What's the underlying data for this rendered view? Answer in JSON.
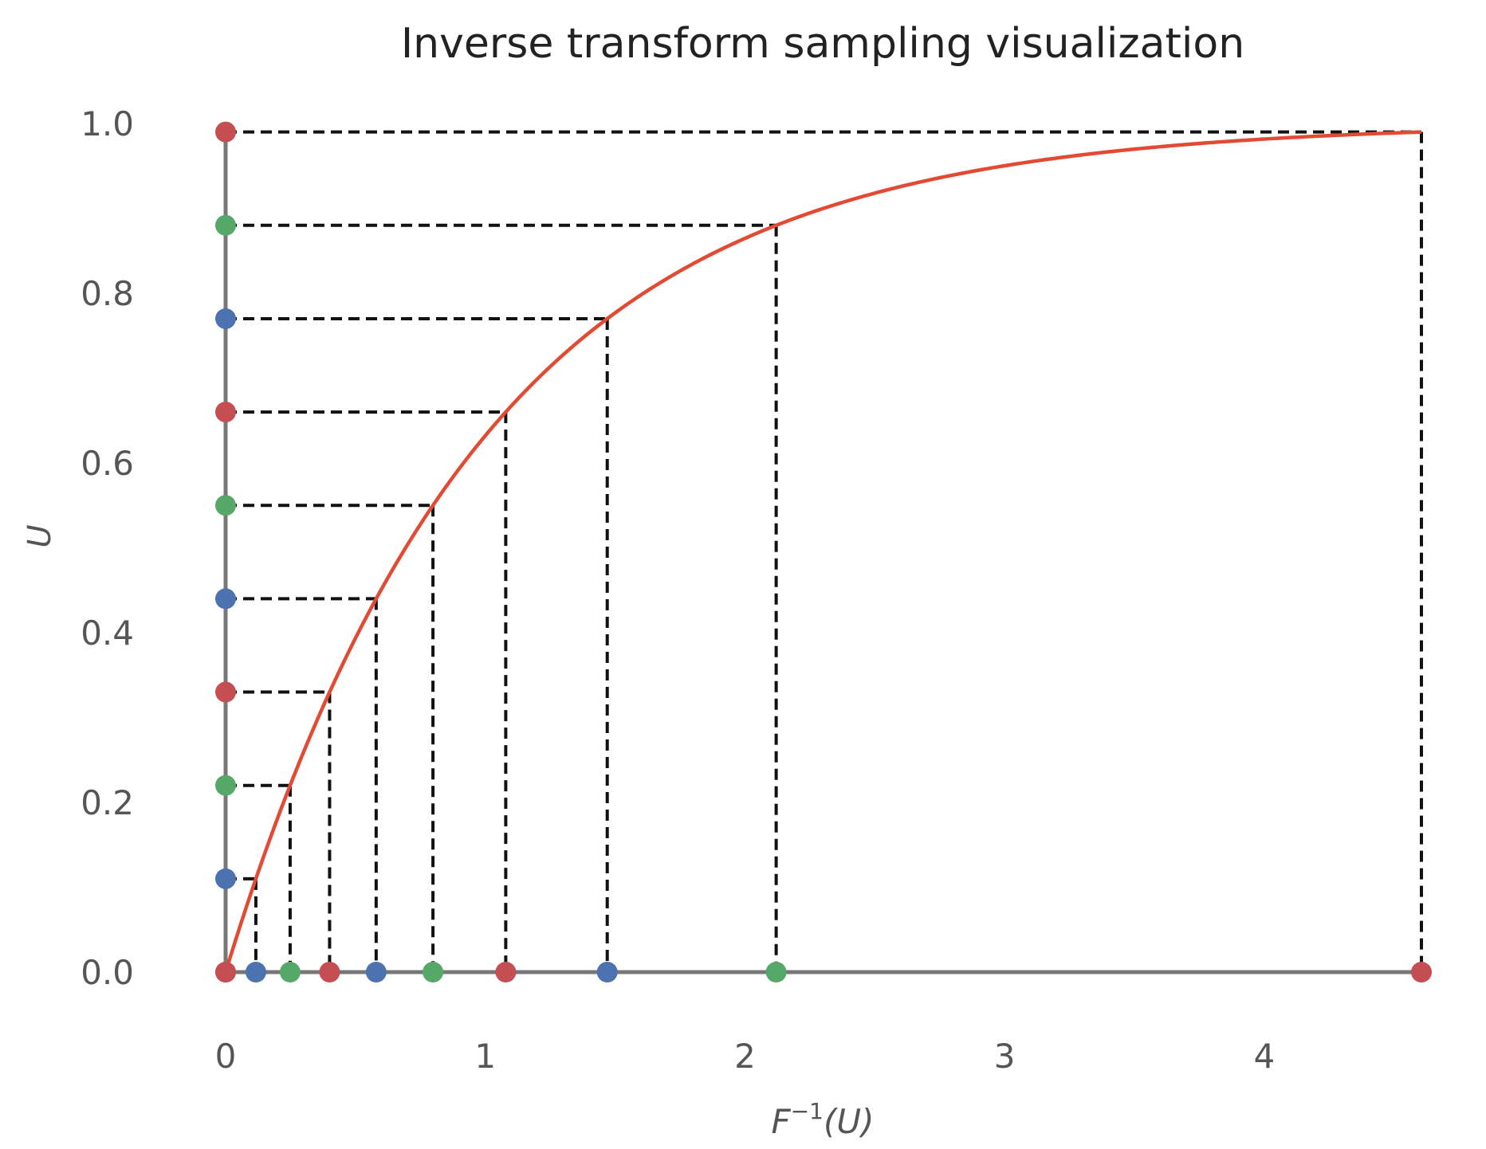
{
  "chart_data": {
    "type": "line",
    "title": "Inverse transform sampling visualization",
    "xlabel_base": "F",
    "xlabel_sup": "−1",
    "xlabel_arg": "(U)",
    "ylabel": "U",
    "xlim": [
      0,
      4.6052
    ],
    "ylim": [
      -0.12,
      1.0
    ],
    "x_ticks": [
      0,
      1,
      2,
      3,
      4
    ],
    "x_tick_labels": [
      "0",
      "1",
      "2",
      "3",
      "4"
    ],
    "y_ticks": [
      0.0,
      0.2,
      0.4,
      0.6,
      0.8,
      1.0
    ],
    "y_tick_labels": [
      "0.0",
      "0.2",
      "0.4",
      "0.6",
      "0.8",
      "1.0"
    ],
    "grid": false,
    "legend": false,
    "series": [
      {
        "kind": "cdf-curve",
        "function": "1 - exp(-x)",
        "x_range": [
          0,
          4.6052
        ],
        "color": "#e24a33"
      }
    ],
    "samples_u": [
      0.0,
      0.11,
      0.22,
      0.33,
      0.44,
      0.55,
      0.66,
      0.77,
      0.88,
      0.99
    ],
    "samples_x": [
      0.0,
      0.1165,
      0.2485,
      0.4005,
      0.5798,
      0.7985,
      1.0788,
      1.4697,
      2.1203,
      4.6052
    ],
    "sample_colors": [
      "#c44e52",
      "#4c72b0",
      "#55a868",
      "#c44e52",
      "#4c72b0",
      "#55a868",
      "#c44e52",
      "#4c72b0",
      "#55a868",
      "#c44e52"
    ],
    "colors": {
      "axis": "#777777",
      "curve": "#e24a33",
      "dashed": "#111111",
      "tick_text": "#555555",
      "title_text": "#222222"
    }
  }
}
